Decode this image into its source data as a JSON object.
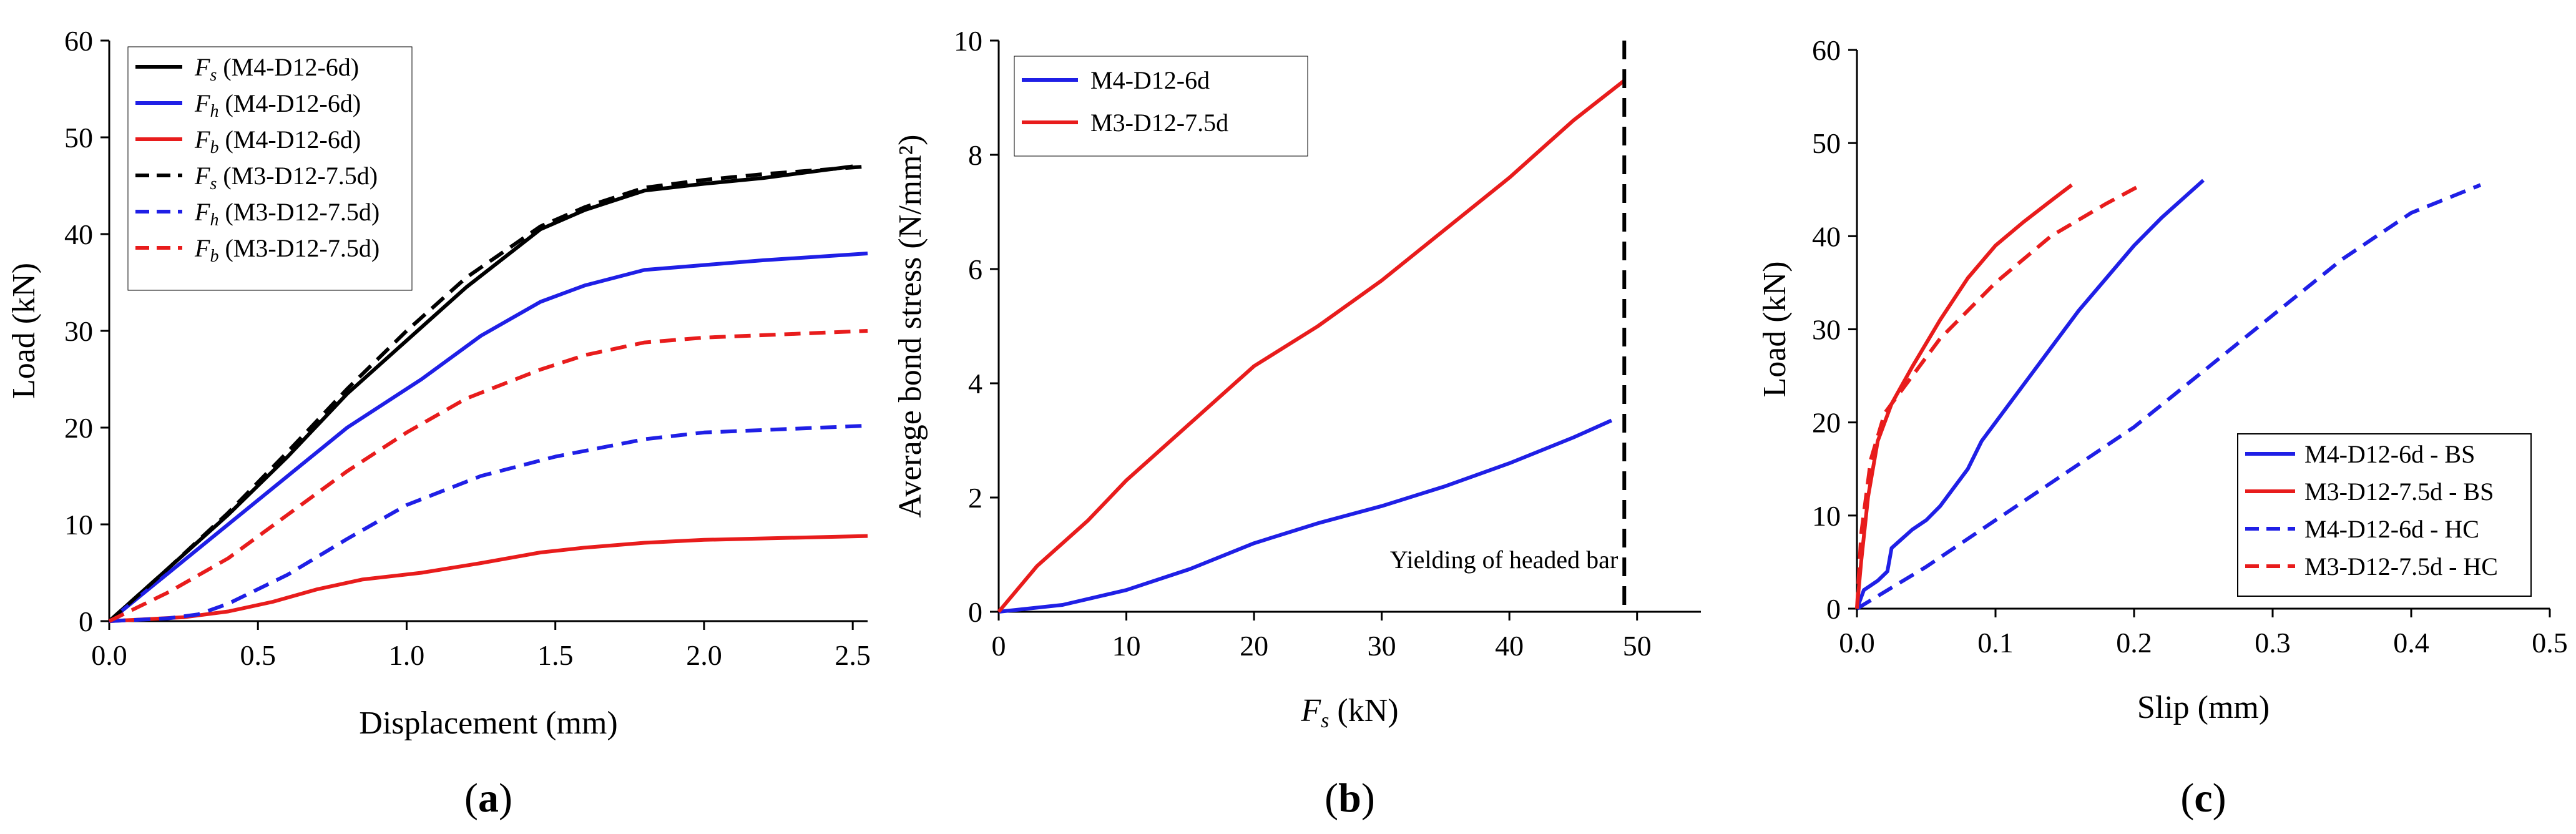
{
  "chart_data": [
    {
      "panel": "a",
      "subplot_label": {
        "open": "(",
        "letter": "a",
        "close": ")"
      },
      "type": "line",
      "xlabel": "Displacement (mm)",
      "ylabel": "Load (kN)",
      "xlim": [
        0,
        2.55
      ],
      "ylim": [
        0,
        60
      ],
      "xticks": [
        0.0,
        0.5,
        1.0,
        1.5,
        2.0,
        2.5
      ],
      "xtick_labels": [
        "0.0",
        "0.5",
        "1.0",
        "1.5",
        "2.0",
        "2.5"
      ],
      "yticks": [
        0,
        10,
        20,
        30,
        40,
        50,
        60
      ],
      "ytick_labels": [
        "0",
        "10",
        "20",
        "30",
        "40",
        "50",
        "60"
      ],
      "legend_position": "top-left",
      "series": [
        {
          "sym": "F",
          "sub": "s",
          "label": " (M4-D12-6d)",
          "color": "#000000",
          "dash": "solid",
          "x": [
            0,
            0.2,
            0.4,
            0.6,
            0.8,
            1.0,
            1.2,
            1.45,
            1.6,
            1.8,
            2.0,
            2.2,
            2.5
          ],
          "y": [
            0,
            5.5,
            11,
            17,
            23.5,
            29,
            34.5,
            40.5,
            42.5,
            44.5,
            45.2,
            45.8,
            47
          ]
        },
        {
          "sym": "F",
          "sub": "h",
          "label": " (M4-D12-6d)",
          "color": "#1f1fe6",
          "dash": "solid",
          "x": [
            0,
            0.2,
            0.4,
            0.6,
            0.8,
            1.05,
            1.25,
            1.45,
            1.6,
            1.8,
            2.0,
            2.2,
            2.55
          ],
          "y": [
            0,
            5,
            10,
            15,
            20,
            25,
            29.5,
            33,
            34.7,
            36.3,
            36.8,
            37.3,
            38
          ]
        },
        {
          "sym": "F",
          "sub": "b",
          "label": " (M4-D12-6d)",
          "color": "#e81c1c",
          "dash": "solid",
          "x": [
            0,
            0.25,
            0.4,
            0.55,
            0.7,
            0.85,
            1.05,
            1.25,
            1.45,
            1.6,
            1.8,
            2.0,
            2.55
          ],
          "y": [
            0,
            0.4,
            1.0,
            2.0,
            3.3,
            4.3,
            5.0,
            6.0,
            7.1,
            7.6,
            8.1,
            8.4,
            8.8
          ]
        },
        {
          "sym": "F",
          "sub": "s",
          "label": " (M3-D12-7.5d)",
          "color": "#000000",
          "dash": "dash",
          "x": [
            0,
            0.2,
            0.4,
            0.6,
            0.8,
            1.0,
            1.2,
            1.45,
            1.6,
            1.8,
            2.0,
            2.2,
            2.55
          ],
          "y": [
            0,
            5.5,
            11.2,
            17.5,
            24,
            30,
            35.5,
            40.8,
            42.8,
            44.8,
            45.6,
            46.2,
            47
          ]
        },
        {
          "sym": "F",
          "sub": "h",
          "label": " (M3-D12-7.5d)",
          "color": "#1f1fe6",
          "dash": "dash",
          "x": [
            0,
            0.2,
            0.3,
            0.4,
            0.6,
            0.8,
            1.0,
            1.25,
            1.5,
            1.8,
            2.0,
            2.55
          ],
          "y": [
            0,
            0.3,
            0.7,
            1.8,
            4.8,
            8.5,
            12,
            15,
            17,
            18.8,
            19.5,
            20.2
          ]
        },
        {
          "sym": "F",
          "sub": "b",
          "label": " (M3-D12-7.5d)",
          "color": "#e81c1c",
          "dash": "dash",
          "x": [
            0,
            0.2,
            0.4,
            0.6,
            0.8,
            1.0,
            1.2,
            1.45,
            1.6,
            1.8,
            2.0,
            2.55
          ],
          "y": [
            0,
            3,
            6.5,
            11,
            15.5,
            19.5,
            23,
            26,
            27.5,
            28.8,
            29.3,
            30
          ]
        }
      ]
    },
    {
      "panel": "b",
      "subplot_label": {
        "open": "(",
        "letter": "b",
        "close": ")"
      },
      "type": "line",
      "xlabel_sym": "F",
      "xlabel_sub": "s",
      "xlabel_rest": " (kN)",
      "ylabel": "Average bond stress (N/mm²)",
      "xlim": [
        0,
        55
      ],
      "ylim": [
        0,
        10
      ],
      "xticks": [
        0,
        10,
        20,
        30,
        40,
        50
      ],
      "xtick_labels": [
        "0",
        "10",
        "20",
        "30",
        "40",
        "50"
      ],
      "yticks": [
        0,
        2,
        4,
        6,
        8,
        10
      ],
      "ytick_labels": [
        "0",
        "2",
        "4",
        "6",
        "8",
        "10"
      ],
      "legend_position": "top-left",
      "series": [
        {
          "label": "M4-D12-6d",
          "color": "#1f1fe6",
          "dash": "solid",
          "x": [
            0,
            5,
            10,
            15,
            20,
            25,
            30,
            35,
            40,
            45,
            48
          ],
          "y": [
            0,
            0.12,
            0.38,
            0.75,
            1.2,
            1.55,
            1.85,
            2.2,
            2.6,
            3.05,
            3.35
          ]
        },
        {
          "label": "M3-D12-7.5d",
          "color": "#e81c1c",
          "dash": "solid",
          "x": [
            0,
            3,
            7,
            10,
            15,
            20,
            25,
            30,
            35,
            40,
            45,
            49
          ],
          "y": [
            0,
            0.8,
            1.6,
            2.3,
            3.3,
            4.3,
            5.0,
            5.8,
            6.7,
            7.6,
            8.6,
            9.3
          ]
        }
      ],
      "reference_line": {
        "x": 49,
        "label": "Yielding of headed bar",
        "style": "dash",
        "color": "#000000"
      }
    },
    {
      "panel": "c",
      "subplot_label": {
        "open": "(",
        "letter": "c",
        "close": ")"
      },
      "type": "line",
      "xlabel": "Slip (mm)",
      "ylabel": "Load (kN)",
      "xlim": [
        0,
        0.5
      ],
      "ylim": [
        0,
        60
      ],
      "xticks": [
        0.0,
        0.1,
        0.2,
        0.3,
        0.4,
        0.5
      ],
      "xtick_labels": [
        "0.0",
        "0.1",
        "0.2",
        "0.3",
        "0.4",
        "0.5"
      ],
      "yticks": [
        0,
        10,
        20,
        30,
        40,
        50,
        60
      ],
      "ytick_labels": [
        "0",
        "10",
        "20",
        "30",
        "40",
        "50",
        "60"
      ],
      "legend_position": "bottom-right",
      "series": [
        {
          "label": "M4-D12-6d - BS",
          "color": "#1f1fe6",
          "dash": "solid",
          "x": [
            0,
            0.005,
            0.015,
            0.022,
            0.025,
            0.04,
            0.05,
            0.06,
            0.07,
            0.08,
            0.09,
            0.1,
            0.12,
            0.14,
            0.16,
            0.18,
            0.2,
            0.22,
            0.25
          ],
          "y": [
            0,
            2,
            3,
            4,
            6.5,
            8.5,
            9.5,
            11,
            13,
            15,
            18,
            20,
            24,
            28,
            32,
            35.5,
            39,
            42,
            46
          ]
        },
        {
          "label": "M3-D12-7.5d - BS",
          "color": "#e81c1c",
          "dash": "solid",
          "x": [
            0,
            0.003,
            0.008,
            0.015,
            0.025,
            0.04,
            0.06,
            0.08,
            0.1,
            0.12,
            0.14,
            0.155
          ],
          "y": [
            0,
            5,
            12,
            18,
            22,
            26,
            31,
            35.5,
            39,
            41.5,
            43.8,
            45.5
          ]
        },
        {
          "label": "M4-D12-6d - HC",
          "color": "#1f1fe6",
          "dash": "dash",
          "x": [
            0,
            0.05,
            0.1,
            0.15,
            0.2,
            0.25,
            0.3,
            0.35,
            0.4,
            0.45
          ],
          "y": [
            0,
            4.5,
            9.5,
            14.5,
            19.5,
            25.5,
            31.5,
            37.5,
            42.5,
            45.5
          ]
        },
        {
          "label": "M3-D12-7.5d - HC",
          "color": "#e81c1c",
          "dash": "dash",
          "x": [
            0,
            0.003,
            0.01,
            0.02,
            0.04,
            0.06,
            0.1,
            0.14,
            0.18,
            0.205
          ],
          "y": [
            0,
            8,
            16,
            21,
            25,
            29,
            35,
            40,
            43.5,
            45.5
          ]
        }
      ]
    }
  ]
}
